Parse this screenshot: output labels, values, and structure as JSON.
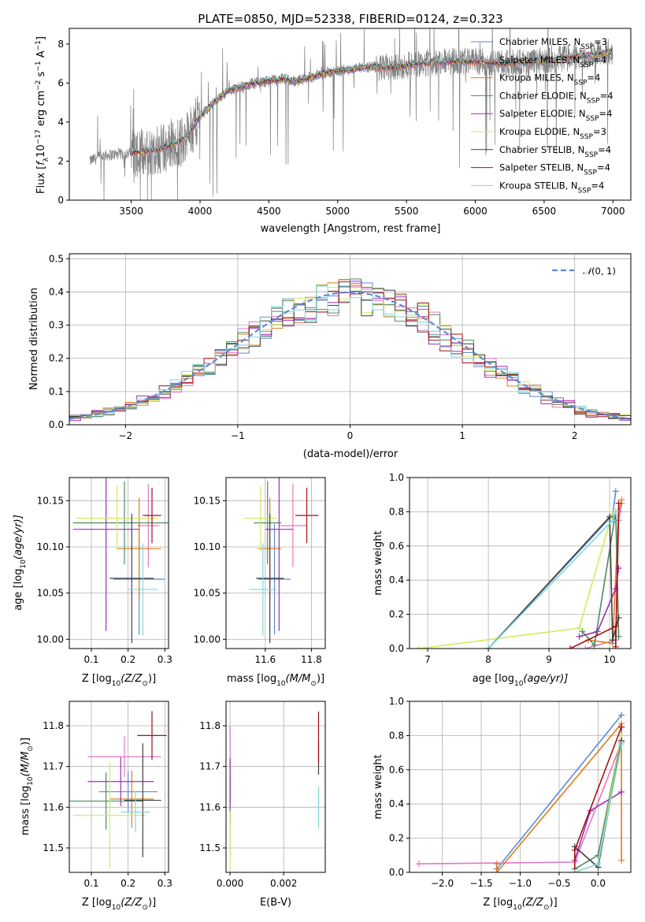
{
  "figure": {
    "title": "PLATE=0850, MJD=52338, FIBERID=0124, z=0.323"
  },
  "series_names": [
    "Chabrier MILES, N_SSP=3",
    "Salpeter MILES, N_SSP=4",
    "Kroupa MILES, N_SSP=4",
    "Chabrier ELODIE, N_SSP=4",
    "Salpeter ELODIE, N_SSP=4",
    "Kroupa ELODIE, N_SSP=3",
    "Chabrier STELIB, N_SSP=4",
    "Salpeter STELIB, N_SSP=4",
    "Kroupa STELIB, N_SSP=4"
  ],
  "legend_labels": [
    {
      "main": "Chabrier MILES, N",
      "sub": "SSP",
      "tail": "=3"
    },
    {
      "main": "Salpeter MILES, N",
      "sub": "SSP",
      "tail": "=4"
    },
    {
      "main": "Kroupa MILES, N",
      "sub": "SSP",
      "tail": "=4"
    },
    {
      "main": "Chabrier ELODIE, N",
      "sub": "SSP",
      "tail": "=4"
    },
    {
      "main": "Salpeter ELODIE, N",
      "sub": "SSP",
      "tail": "=4"
    },
    {
      "main": "Kroupa ELODIE, N",
      "sub": "SSP",
      "tail": "=3"
    },
    {
      "main": "Chabrier STELIB, N",
      "sub": "SSP",
      "tail": "=4"
    },
    {
      "main": "Salpeter STELIB, N",
      "sub": "SSP",
      "tail": "=4"
    },
    {
      "main": "Kroupa STELIB, N",
      "sub": "SSP",
      "tail": "=4"
    }
  ],
  "colors": [
    "#5b8bd6",
    "#e377c2",
    "#e07b20",
    "#4f8a5c",
    "#9b30b5",
    "#d4ea5e",
    "#404040",
    "#a50f15",
    "#7fd8d8"
  ],
  "chart_data": [
    {
      "id": "spectrum",
      "type": "line",
      "xlabel": "wavelength [Angstrom, rest frame]",
      "ylabel_parts": {
        "a": "Flux [",
        "b": "f",
        "c": "λ",
        "d": "10",
        "e": "−17",
        "f": " erg cm",
        "g": "−2",
        "h": " s",
        "i": "−1",
        "j": " A",
        "k": "−1",
        "l": "]"
      },
      "xlim": [
        3050,
        7130
      ],
      "ylim": [
        0,
        8.8
      ],
      "xticks": [
        3500,
        4000,
        4500,
        5000,
        5500,
        6000,
        6500,
        7000
      ],
      "yticks": [
        0,
        2,
        4,
        6,
        8
      ],
      "data_coverage": [
        3200,
        7000
      ],
      "model_coverage": [
        3500,
        7000
      ],
      "continuum_x": [
        3200,
        3300,
        3400,
        3500,
        3600,
        3700,
        3800,
        3900,
        4000,
        4100,
        4200,
        4300,
        4400,
        4500,
        4600,
        4700,
        4800,
        4900,
        5000,
        5200,
        5400,
        5600,
        5800,
        6000,
        6200,
        6400,
        6600,
        6800,
        7000
      ],
      "continuum_y": [
        2.0,
        2.3,
        2.35,
        2.4,
        2.5,
        2.6,
        2.8,
        3.2,
        4.3,
        5.0,
        5.6,
        5.8,
        6.0,
        6.1,
        6.2,
        6.1,
        6.3,
        6.5,
        6.6,
        6.8,
        6.8,
        7.0,
        7.1,
        7.1,
        7.0,
        7.1,
        7.2,
        7.4,
        7.6
      ]
    },
    {
      "id": "residuals",
      "type": "area",
      "xlabel": "(data-model)/error",
      "ylabel": "Normed distribution",
      "xlim": [
        -2.5,
        2.5
      ],
      "ylim": [
        0,
        0.515
      ],
      "xticks": [
        -2,
        -1,
        0,
        1,
        2
      ],
      "yticks": [
        0.0,
        0.1,
        0.2,
        0.3,
        0.4,
        0.5
      ],
      "bin_width": 0.1,
      "reference_curve": "N(0,1)",
      "reference_label": {
        "pre": "𝒩",
        "mid": "(0, 1)"
      }
    },
    {
      "id": "age-vs-Z",
      "type": "scatter",
      "xlabel_parts": {
        "a": "Z [log",
        "b": "10",
        "c": "(Z/Z",
        "d": "⊙",
        "e": ")]"
      },
      "ylabel_parts": {
        "a": "age  [log",
        "b": "10",
        "c": "(age/yr)]"
      },
      "xlim": [
        0.04,
        0.31
      ],
      "ylim": [
        9.99,
        10.175
      ],
      "xticks": [
        0.1,
        0.2,
        0.3
      ],
      "yticks": [
        10.0,
        10.05,
        10.1,
        10.15
      ],
      "points": [
        {
          "x": 0.23,
          "y": 10.065,
          "xerr": 0.07,
          "yerr": 0.06
        },
        {
          "x": 0.255,
          "y": 10.123,
          "xerr": 0.03,
          "yerr": 0.045
        },
        {
          "x": 0.23,
          "y": 10.098,
          "xerr": 0.06,
          "yerr": 0.055
        },
        {
          "x": 0.19,
          "y": 10.126,
          "xerr": 0.14,
          "yerr": 0.045
        },
        {
          "x": 0.14,
          "y": 10.119,
          "xerr": 0.09,
          "yerr": 0.11
        },
        {
          "x": 0.17,
          "y": 10.131,
          "xerr": 0.11,
          "yerr": 0.035
        },
        {
          "x": 0.21,
          "y": 10.066,
          "xerr": 0.06,
          "yerr": 0.07
        },
        {
          "x": 0.265,
          "y": 10.134,
          "xerr": 0.025,
          "yerr": 0.03
        },
        {
          "x": 0.24,
          "y": 10.054,
          "xerr": 0.04,
          "yerr": 0.05
        }
      ]
    },
    {
      "id": "age-vs-mass",
      "type": "scatter",
      "xlabel_parts": {
        "a": "mass [log",
        "b": "10",
        "c": "(M/M",
        "d": "⊙",
        "e": ")]"
      },
      "xlim": [
        11.43,
        11.86
      ],
      "ylim": [
        9.99,
        10.175
      ],
      "xticks": [
        11.6,
        11.8
      ],
      "yticks": [
        10.0,
        10.05,
        10.1,
        10.15
      ],
      "points": [
        {
          "x": 11.64,
          "y": 10.065,
          "xerr": 0.07,
          "yerr": 0.06
        },
        {
          "x": 11.72,
          "y": 10.123,
          "xerr": 0.06,
          "yerr": 0.045
        },
        {
          "x": 11.62,
          "y": 10.098,
          "xerr": 0.05,
          "yerr": 0.055
        },
        {
          "x": 11.61,
          "y": 10.126,
          "xerr": 0.06,
          "yerr": 0.045
        },
        {
          "x": 11.66,
          "y": 10.119,
          "xerr": 0.06,
          "yerr": 0.11
        },
        {
          "x": 11.58,
          "y": 10.131,
          "xerr": 0.07,
          "yerr": 0.035
        },
        {
          "x": 11.62,
          "y": 10.066,
          "xerr": 0.06,
          "yerr": 0.07
        },
        {
          "x": 11.78,
          "y": 10.134,
          "xerr": 0.05,
          "yerr": 0.03
        },
        {
          "x": 11.59,
          "y": 10.054,
          "xerr": 0.06,
          "yerr": 0.05
        }
      ]
    },
    {
      "id": "mass-weight-vs-age",
      "type": "line",
      "xlabel_parts": {
        "a": "age  [log",
        "b": "10",
        "c": "(age/yr)]"
      },
      "ylabel": "mass weight",
      "xlim": [
        6.7,
        10.35
      ],
      "ylim": [
        0,
        1.0
      ],
      "xticks": [
        7,
        8,
        9,
        10
      ],
      "yticks": [
        0.0,
        0.2,
        0.4,
        0.6,
        0.8,
        1.0
      ],
      "lines": [
        {
          "x": [
            8.0,
            10.05,
            10.1
          ],
          "y": [
            0.0,
            0.78,
            0.92
          ]
        },
        {
          "x": [
            9.6,
            10.1,
            10.15,
            10.2
          ],
          "y": [
            0.0,
            0.05,
            0.75,
            0.85
          ]
        },
        {
          "x": [
            9.65,
            10.05,
            10.15,
            10.2
          ],
          "y": [
            0.05,
            0.03,
            0.8,
            0.87
          ]
        },
        {
          "x": [
            9.55,
            9.75,
            10.1,
            10.15
          ],
          "y": [
            0.1,
            0.02,
            0.8,
            0.07
          ]
        },
        {
          "x": [
            9.5,
            9.8,
            10.1,
            10.15
          ],
          "y": [
            0.07,
            0.1,
            0.35,
            0.47
          ]
        },
        {
          "x": [
            6.85,
            9.5,
            10.05
          ],
          "y": [
            0.0,
            0.12,
            0.8
          ]
        },
        {
          "x": [
            8.0,
            10.0,
            10.05,
            10.15
          ],
          "y": [
            0.0,
            0.77,
            0.05,
            0.18
          ]
        },
        {
          "x": [
            9.35,
            10.1,
            10.1,
            10.15
          ],
          "y": [
            0.0,
            0.13,
            0.01,
            0.85
          ]
        },
        {
          "x": [
            8.0,
            10.05,
            10.1
          ],
          "y": [
            0.0,
            0.75,
            0.8
          ]
        }
      ]
    },
    {
      "id": "mass-vs-Z",
      "type": "scatter",
      "xlabel_parts": {
        "a": "Z [log",
        "b": "10",
        "c": "(Z/Z",
        "d": "⊙",
        "e": ")]"
      },
      "ylabel_parts": {
        "a": "mass [log",
        "b": "10",
        "c": "(M/M",
        "d": "⊙",
        "e": ")]"
      },
      "xlim": [
        0.04,
        0.31
      ],
      "ylim": [
        11.44,
        11.86
      ],
      "xticks": [
        0.1,
        0.2,
        0.3
      ],
      "yticks": [
        11.5,
        11.6,
        11.7,
        11.8
      ],
      "points": [
        {
          "x": 0.2,
          "y": 11.638,
          "xerr": 0.08,
          "yerr": 0.05
        },
        {
          "x": 0.19,
          "y": 11.724,
          "xerr": 0.1,
          "yerr": 0.05
        },
        {
          "x": 0.21,
          "y": 11.62,
          "xerr": 0.06,
          "yerr": 0.07
        },
        {
          "x": 0.14,
          "y": 11.615,
          "xerr": 0.1,
          "yerr": 0.07
        },
        {
          "x": 0.18,
          "y": 11.663,
          "xerr": 0.09,
          "yerr": 0.06
        },
        {
          "x": 0.15,
          "y": 11.58,
          "xerr": 0.1,
          "yerr": 0.13
        },
        {
          "x": 0.24,
          "y": 11.617,
          "xerr": 0.05,
          "yerr": 0.14
        },
        {
          "x": 0.265,
          "y": 11.776,
          "xerr": 0.04,
          "yerr": 0.06
        },
        {
          "x": 0.22,
          "y": 11.588,
          "xerr": 0.04,
          "yerr": 0.05
        }
      ]
    },
    {
      "id": "mass-vs-ebv",
      "type": "scatter",
      "xlabel": "E(B-V)",
      "xlim": [
        -0.00015,
        0.00355
      ],
      "ylim": [
        11.44,
        11.86
      ],
      "xticks": [
        0.0,
        0.002
      ],
      "xtick_labels": [
        "0.000",
        "0.002"
      ],
      "yticks": [
        11.5,
        11.6,
        11.7,
        11.8
      ],
      "points": [
        {
          "x": 0.0,
          "y": 11.64,
          "xerr": 0,
          "yerr": 0.16
        },
        {
          "x": 0.0,
          "y": 11.72,
          "xerr": 0,
          "yerr": 0.08
        },
        {
          "x": 0.0,
          "y": 11.62,
          "xerr": 0,
          "yerr": 0.07
        },
        {
          "x": 0.0,
          "y": 11.615,
          "xerr": 0,
          "yerr": 0.05
        },
        {
          "x": 0.0,
          "y": 11.66,
          "xerr": 0,
          "yerr": 0.06
        },
        {
          "x": 0.0,
          "y": 11.52,
          "xerr": 0,
          "yerr": 0.07
        },
        {
          "x": 0.0033,
          "y": 11.72,
          "xerr": 0,
          "yerr": 0.04
        },
        {
          "x": 0.0033,
          "y": 11.77,
          "xerr": 0,
          "yerr": 0.065
        },
        {
          "x": 0.0033,
          "y": 11.6,
          "xerr": 0,
          "yerr": 0.05
        }
      ]
    },
    {
      "id": "mass-weight-vs-Z",
      "type": "line",
      "xlabel_parts": {
        "a": "Z [log",
        "b": "10",
        "c": "(Z/Z",
        "d": "⊙",
        "e": ")]"
      },
      "ylabel": "mass weight",
      "xlim": [
        -2.42,
        0.42
      ],
      "ylim": [
        0,
        1.0
      ],
      "xticks": [
        -2.0,
        -1.5,
        -1.0,
        -0.5,
        0.0
      ],
      "xtick_labels": [
        "−2.0",
        "−1.5",
        "−1.0",
        "−0.5",
        "0.0"
      ],
      "yticks": [
        0.0,
        0.2,
        0.4,
        0.6,
        0.8,
        1.0
      ],
      "lines": [
        {
          "x": [
            -1.3,
            0.3
          ],
          "y": [
            0.02,
            0.92
          ]
        },
        {
          "x": [
            -2.3,
            -0.3,
            0.3,
            0.3
          ],
          "y": [
            0.05,
            0.06,
            0.76,
            0.85
          ]
        },
        {
          "x": [
            -1.3,
            -1.3,
            0.3,
            0.3
          ],
          "y": [
            0.05,
            0.0,
            0.87,
            0.07
          ]
        },
        {
          "x": [
            -0.3,
            0.0,
            0.3
          ],
          "y": [
            0.02,
            0.1,
            0.8
          ]
        },
        {
          "x": [
            -0.3,
            -0.1,
            0.3
          ],
          "y": [
            0.07,
            0.36,
            0.47
          ]
        },
        {
          "x": [
            -0.3,
            0.0,
            0.3
          ],
          "y": [
            0.0,
            0.05,
            0.8
          ]
        },
        {
          "x": [
            -0.3,
            0.0,
            0.3
          ],
          "y": [
            0.15,
            0.03,
            0.77
          ]
        },
        {
          "x": [
            -0.3,
            -0.3,
            0.3
          ],
          "y": [
            0.0,
            0.13,
            0.85
          ]
        },
        {
          "x": [
            -0.3,
            0.0,
            0.3
          ],
          "y": [
            0.0,
            0.05,
            0.75
          ]
        }
      ]
    }
  ]
}
